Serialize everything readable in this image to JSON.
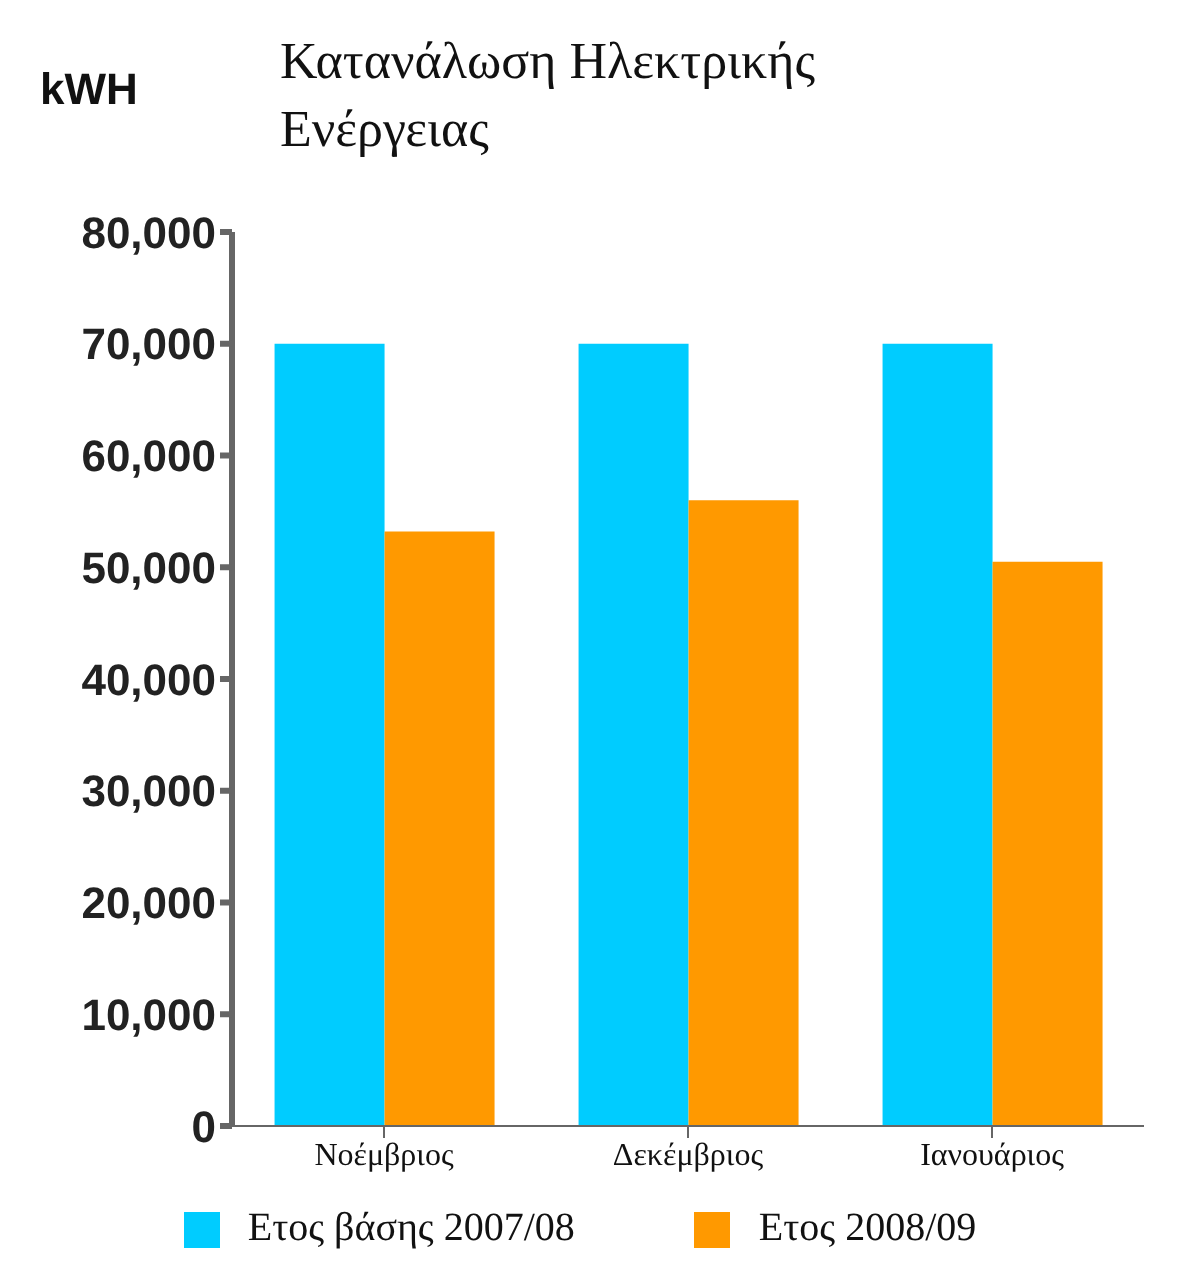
{
  "chart_data": {
    "type": "bar",
    "title": "Κατανάλωση Ηλεκτρικής Ενέργειας",
    "ylabel": "kWH",
    "categories": [
      "Νοέμβριος",
      "Δεκέμβριος",
      "Ιανουάριος"
    ],
    "series": [
      {
        "name": "Ετος βάσης  2007/08",
        "color": "#00ccff",
        "values": [
          70000,
          70000,
          70000
        ]
      },
      {
        "name": "Ετος  2008/09",
        "color": "#ff9900",
        "values": [
          53200,
          56000,
          50500
        ]
      }
    ],
    "ylim": [
      0,
      80000
    ],
    "yticks": [
      0,
      {
        "value": 10000,
        "label": "10,000"
      },
      {
        "value": 20000,
        "label": "20,000"
      },
      {
        "value": 30000,
        "label": "30,000"
      },
      {
        "value": 40000,
        "label": "40,000"
      },
      {
        "value": 50000,
        "label": "50,000"
      },
      {
        "value": 60000,
        "label": "60,000"
      },
      {
        "value": 70000,
        "label": "70,000"
      },
      {
        "value": 80000,
        "label": "80,000"
      }
    ],
    "grid": false,
    "legend": "bottom"
  }
}
